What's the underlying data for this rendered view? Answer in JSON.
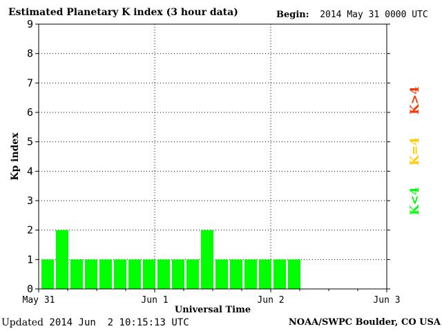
{
  "header": {
    "title": "Estimated Planetary K index (3 hour data)",
    "begin_label": "Begin:",
    "begin_value": "2014 May 31 0000 UTC"
  },
  "footer": {
    "updated_label": "Updated",
    "updated_value": "2014 Jun  2 10:15:13 UTC",
    "source": "NOAA/SWPC Boulder, CO USA"
  },
  "legend": {
    "low": "K<4",
    "mid": "K=4",
    "high": "K>4",
    "low_color": "#00ff00",
    "mid_color": "#ffcc00",
    "high_color": "#ff3300"
  },
  "chart_data": {
    "type": "bar",
    "title": "Estimated Planetary K index (3 hour data)",
    "xlabel": "Universal Time",
    "ylabel": "Kp index",
    "ylim": [
      0,
      9
    ],
    "yticks": [
      0,
      1,
      2,
      3,
      4,
      5,
      6,
      7,
      8,
      9
    ],
    "xticks": [
      "May 31",
      "Jun 1",
      "Jun 2",
      "Jun 3"
    ],
    "x_range_days": [
      0,
      3
    ],
    "bar_interval_hours": 3,
    "grid": true,
    "bar_color": "#00ff00",
    "values": [
      1,
      2,
      1,
      1,
      1,
      1,
      1,
      1,
      1,
      1,
      1,
      2,
      1,
      1,
      1,
      1,
      1,
      1
    ]
  }
}
